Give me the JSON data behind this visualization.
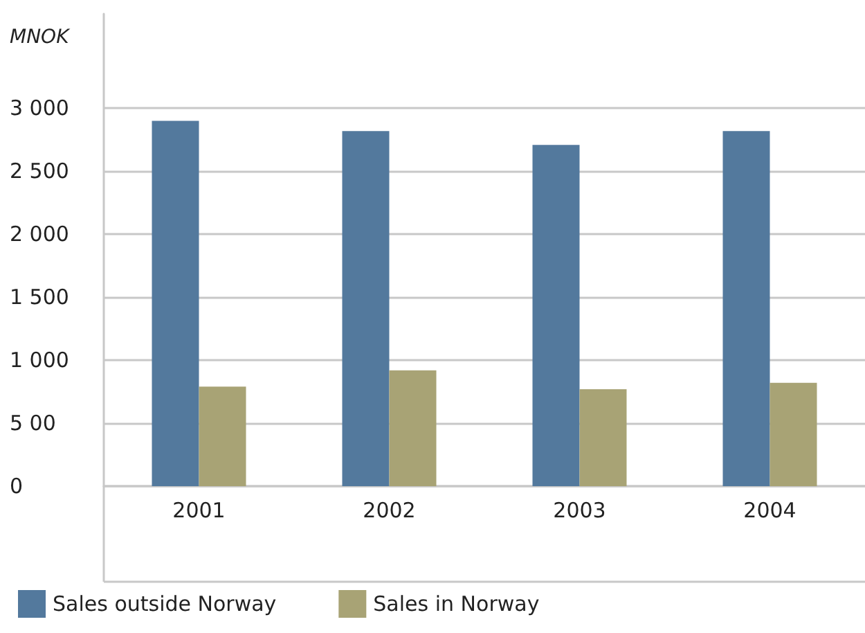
{
  "chart_data": {
    "type": "bar",
    "ylabel": "MNOK",
    "categories": [
      "2001",
      "2002",
      "2003",
      "2004"
    ],
    "series": [
      {
        "name": "Sales outside Norway",
        "color": "#53799d",
        "values": [
          2900,
          2820,
          2710,
          2820
        ]
      },
      {
        "name": "Sales in Norway",
        "color": "#a8a375",
        "values": [
          790,
          920,
          770,
          820
        ]
      }
    ],
    "ylim": [
      0,
      3750
    ],
    "yticks": [
      {
        "value": 0,
        "label": "0"
      },
      {
        "value": 500,
        "label": "5 00"
      },
      {
        "value": 1000,
        "label": "1 000"
      },
      {
        "value": 1500,
        "label": "1 500"
      },
      {
        "value": 2000,
        "label": "2 000"
      },
      {
        "value": 2500,
        "label": "2 500"
      },
      {
        "value": 3000,
        "label": "3 000"
      }
    ],
    "grid": "y",
    "legend": "bottom left"
  }
}
